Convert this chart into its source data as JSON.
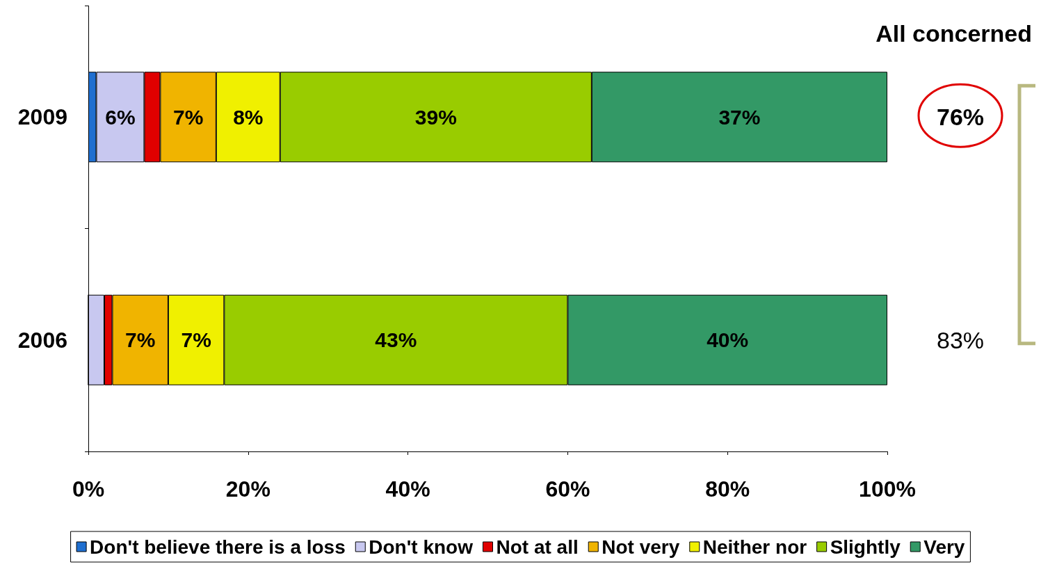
{
  "chart_data": {
    "type": "bar",
    "orientation": "horizontal",
    "stacked": true,
    "title": "All concerned",
    "categories": [
      "2009",
      "2006"
    ],
    "series": [
      {
        "name": "Don't believe there is a loss",
        "color": "#1f6fd0",
        "values": [
          1,
          0
        ],
        "value_labels": [
          null,
          null
        ]
      },
      {
        "name": "Don't know",
        "color": "#c8c8f0",
        "values": [
          6,
          2
        ],
        "value_labels": [
          "6%",
          null
        ]
      },
      {
        "name": "Not at all",
        "color": "#e00000",
        "values": [
          2,
          1
        ],
        "value_labels": [
          null,
          null
        ]
      },
      {
        "name": "Not very",
        "color": "#f0b400",
        "values": [
          7,
          7
        ],
        "value_labels": [
          "7%",
          "7%"
        ]
      },
      {
        "name": "Neither nor",
        "color": "#f0f000",
        "values": [
          8,
          7
        ],
        "value_labels": [
          "8%",
          "7%"
        ]
      },
      {
        "name": "Slightly",
        "color": "#99cc00",
        "values": [
          39,
          43
        ],
        "value_labels": [
          "39%",
          "43%"
        ]
      },
      {
        "name": "Very",
        "color": "#339966",
        "values": [
          37,
          40
        ],
        "value_labels": [
          "37%",
          "40%"
        ]
      }
    ],
    "xlim": [
      0,
      100
    ],
    "xticks": [
      {
        "value": 0,
        "label": "0%"
      },
      {
        "value": 20,
        "label": "20%"
      },
      {
        "value": 40,
        "label": "40%"
      },
      {
        "value": 60,
        "label": "60%"
      },
      {
        "value": 80,
        "label": "80%"
      },
      {
        "value": 100,
        "label": "100%"
      }
    ],
    "annotations": [
      "76%",
      "83%"
    ],
    "grid": false,
    "legend": "bottom"
  }
}
